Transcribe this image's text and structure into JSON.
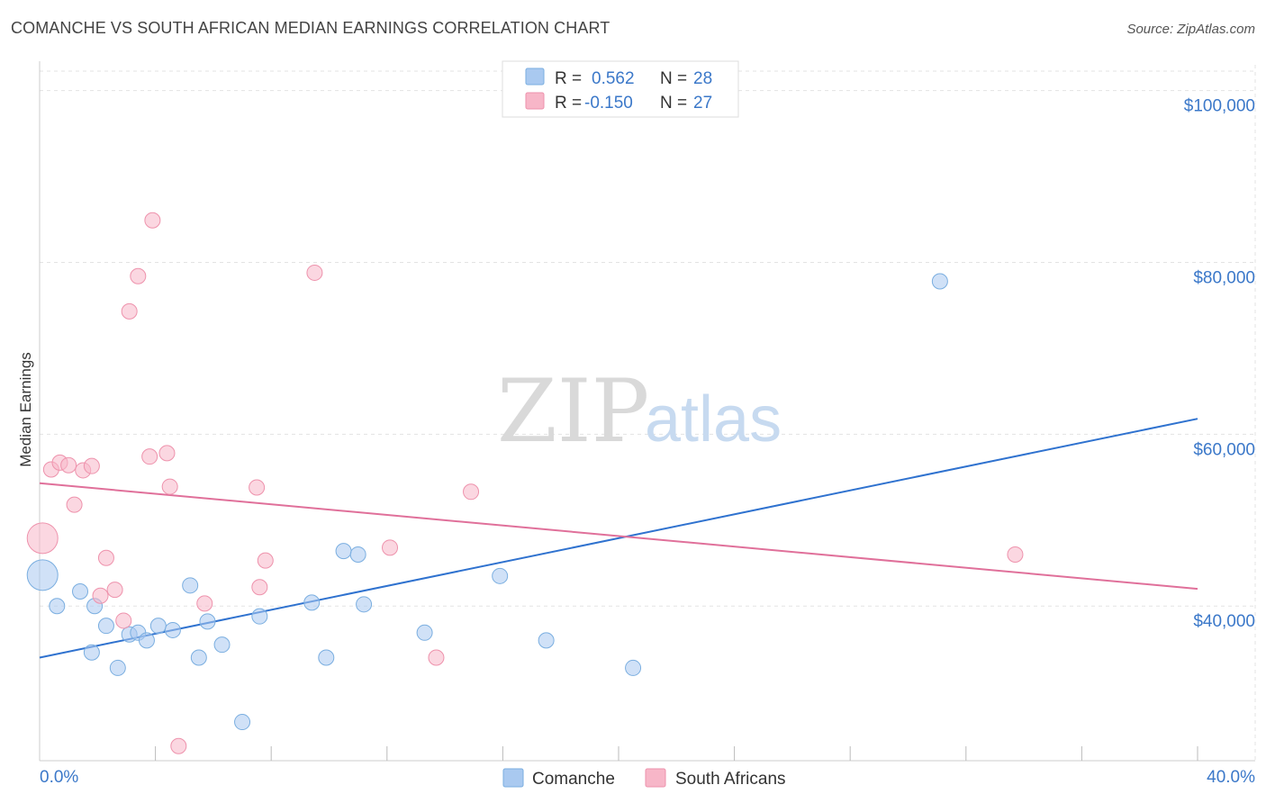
{
  "header": {
    "title": "COMANCHE VS SOUTH AFRICAN MEDIAN EARNINGS CORRELATION CHART",
    "source": "Source: ZipAtlas.com"
  },
  "watermark": {
    "zip": "ZIP",
    "atlas": "atlas"
  },
  "legend_top": {
    "r_label": "R =",
    "n_label": "N =",
    "rows": [
      {
        "r": "0.562",
        "n": "28",
        "color": "#a9c9f0"
      },
      {
        "r": "-0.150",
        "n": "27",
        "color": "#f7b6c8"
      }
    ]
  },
  "legend_bottom": [
    "Comanche",
    "South Africans"
  ],
  "chart_data": {
    "type": "scatter",
    "title": "COMANCHE VS SOUTH AFRICAN MEDIAN EARNINGS CORRELATION CHART",
    "xlabel": "",
    "ylabel": "Median Earnings",
    "xlim": [
      0,
      40
    ],
    "ylim": [
      22000,
      103000
    ],
    "x_tick_labels": [
      "0.0%",
      "40.0%"
    ],
    "y_ticks": [
      40000,
      60000,
      80000,
      100000
    ],
    "y_tick_labels": [
      "$40,000",
      "$60,000",
      "$80,000",
      "$100,000"
    ],
    "grid": true,
    "legend_position": "top-center",
    "series": [
      {
        "name": "Comanche",
        "color": "#a9c9f0",
        "stroke": "#7aaee0",
        "line_color": "#2f72cf",
        "r": 0.562,
        "n": 28,
        "trend": {
          "x": [
            0,
            40
          ],
          "y": [
            34000,
            61800
          ]
        },
        "points": [
          {
            "x": 0.1,
            "y": 43600,
            "big": true
          },
          {
            "x": 0.6,
            "y": 40000
          },
          {
            "x": 1.9,
            "y": 40000
          },
          {
            "x": 1.4,
            "y": 41700
          },
          {
            "x": 1.8,
            "y": 34600
          },
          {
            "x": 2.3,
            "y": 37700
          },
          {
            "x": 2.7,
            "y": 32800
          },
          {
            "x": 3.1,
            "y": 36700
          },
          {
            "x": 3.4,
            "y": 36900
          },
          {
            "x": 3.7,
            "y": 36000
          },
          {
            "x": 4.1,
            "y": 37700
          },
          {
            "x": 4.6,
            "y": 37200
          },
          {
            "x": 5.2,
            "y": 42400
          },
          {
            "x": 5.5,
            "y": 34000
          },
          {
            "x": 5.8,
            "y": 38200
          },
          {
            "x": 6.3,
            "y": 35500
          },
          {
            "x": 7.0,
            "y": 26500
          },
          {
            "x": 7.6,
            "y": 38800
          },
          {
            "x": 9.4,
            "y": 40400
          },
          {
            "x": 9.9,
            "y": 34000
          },
          {
            "x": 10.5,
            "y": 46400
          },
          {
            "x": 11.0,
            "y": 46000
          },
          {
            "x": 11.2,
            "y": 40200
          },
          {
            "x": 13.3,
            "y": 36900
          },
          {
            "x": 15.9,
            "y": 43500
          },
          {
            "x": 17.5,
            "y": 36000
          },
          {
            "x": 20.5,
            "y": 32800
          },
          {
            "x": 31.1,
            "y": 77800
          }
        ]
      },
      {
        "name": "South Africans",
        "color": "#f7b6c8",
        "stroke": "#ee92ac",
        "line_color": "#e0709a",
        "r": -0.15,
        "n": 27,
        "trend": {
          "x": [
            0,
            40
          ],
          "y": [
            54300,
            42000
          ]
        },
        "points": [
          {
            "x": 0.1,
            "y": 47900,
            "big": true
          },
          {
            "x": 0.4,
            "y": 55900
          },
          {
            "x": 0.7,
            "y": 56700
          },
          {
            "x": 1.0,
            "y": 56400
          },
          {
            "x": 1.5,
            "y": 55800
          },
          {
            "x": 1.8,
            "y": 56300
          },
          {
            "x": 1.2,
            "y": 51800
          },
          {
            "x": 2.3,
            "y": 45600
          },
          {
            "x": 2.1,
            "y": 41200
          },
          {
            "x": 2.6,
            "y": 41900
          },
          {
            "x": 2.9,
            "y": 38300
          },
          {
            "x": 3.1,
            "y": 74300
          },
          {
            "x": 3.4,
            "y": 78400
          },
          {
            "x": 3.8,
            "y": 57400
          },
          {
            "x": 3.9,
            "y": 84900
          },
          {
            "x": 4.4,
            "y": 57800
          },
          {
            "x": 4.5,
            "y": 53900
          },
          {
            "x": 4.8,
            "y": 23700
          },
          {
            "x": 5.7,
            "y": 40300
          },
          {
            "x": 7.5,
            "y": 53800
          },
          {
            "x": 7.6,
            "y": 42200
          },
          {
            "x": 7.8,
            "y": 45300
          },
          {
            "x": 9.5,
            "y": 78800
          },
          {
            "x": 12.1,
            "y": 46800
          },
          {
            "x": 13.7,
            "y": 34000
          },
          {
            "x": 14.9,
            "y": 53300
          },
          {
            "x": 33.7,
            "y": 46000
          }
        ]
      }
    ]
  }
}
